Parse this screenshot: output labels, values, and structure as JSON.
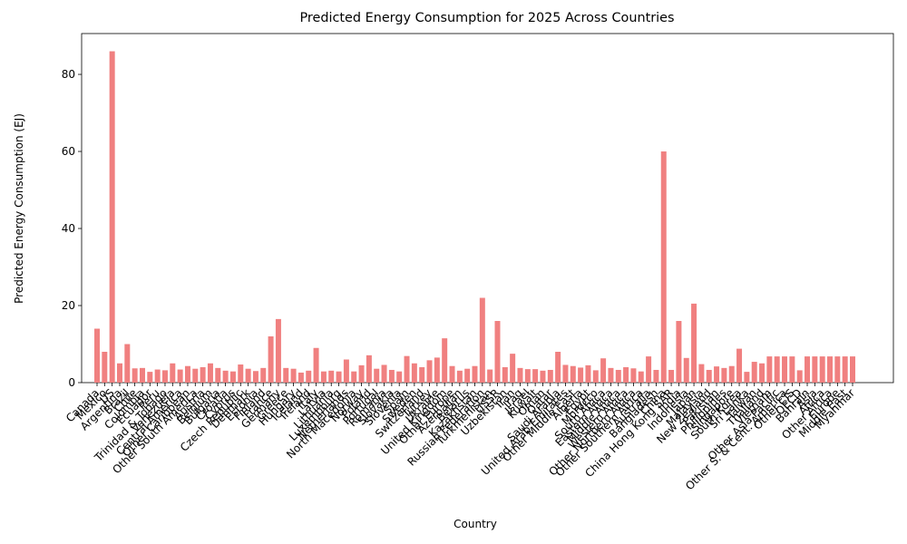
{
  "chart_data": {
    "type": "bar",
    "title": "Predicted Energy Consumption for 2025 Across Countries",
    "x_label": "Country",
    "y_label": "Predicted Energy Consumption (EJ)",
    "color": "#f08080",
    "grid": false,
    "ylim": [
      0,
      90.6
    ],
    "yticks": [
      0,
      20,
      40,
      60,
      80
    ],
    "categories": [
      "Canada",
      "Mexico",
      "US",
      "Argentina",
      "Brazil",
      "Chile",
      "Colombia",
      "Ecuador",
      "Peru",
      "Trinidad & Tobago",
      "Venezuela",
      "Central America",
      "Other Caribbean",
      "Other South America",
      "Austria",
      "Belgium",
      "Bulgaria",
      "Croatia",
      "Cyprus",
      "Czech Republic",
      "Denmark",
      "Estonia",
      "Finland",
      "France",
      "Germany",
      "Greece",
      "Hungary",
      "Iceland",
      "Ireland",
      "Italy",
      "Latvia",
      "Lithuania",
      "Luxembourg",
      "Netherlands",
      "North Macedonia",
      "Norway",
      "Poland",
      "Portugal",
      "Romania",
      "Slovakia",
      "Slovenia",
      "Spain",
      "Sweden",
      "Switzerland",
      "Turkey",
      "Ukraine",
      "United Kingdom",
      "Other Europe",
      "Azerbaijan",
      "Belarus",
      "Kazakhstan",
      "Russian Federation",
      "Turkmenistan",
      "USSR",
      "Uzbekistan",
      "Iran",
      "Iraq",
      "Israel",
      "Kuwait",
      "Oman",
      "Qatar",
      "Saudi Arabia",
      "United Arab Emirates",
      "Other Middle East",
      "Algeria",
      "Egypt",
      "Morocco",
      "South Africa",
      "Eastern Africa",
      "Middle Africa",
      "Western Africa",
      "Other Northern Africa",
      "Other Southern Africa",
      "Australia",
      "Bangladesh",
      "China",
      "China Hong Kong SAR",
      "India",
      "Indonesia",
      "Japan",
      "Malaysia",
      "New Zealand",
      "Pakistan",
      "Philippines",
      "Singapore",
      "South Korea",
      "Sri Lanka",
      "Taiwan",
      "Thailand",
      "Vietnam",
      "Other Asia Pacific",
      "Other S. & Cent. America",
      "Other CIS",
      "OECD",
      "Bahrain",
      "Asia",
      "Africa",
      "Other Africa",
      "Europe",
      "Middle East",
      "Myanmar"
    ],
    "values": [
      14,
      8,
      86,
      5,
      10,
      3.7,
      3.8,
      2.8,
      3.4,
      3.2,
      5,
      3.4,
      4.3,
      3.6,
      4,
      5,
      3.8,
      3.1,
      2.9,
      4.7,
      3.6,
      3,
      3.8,
      12,
      16.5,
      3.8,
      3.6,
      2.6,
      3.1,
      9,
      2.9,
      3.1,
      2.9,
      6,
      2.9,
      4.5,
      7.1,
      3.6,
      4.6,
      3.3,
      2.9,
      6.9,
      5,
      4,
      5.8,
      6.5,
      11.5,
      4.3,
      3.1,
      3.6,
      4.3,
      22,
      3.4,
      16,
      4,
      7.5,
      3.8,
      3.5,
      3.5,
      3.1,
      3.3,
      8,
      4.6,
      4.3,
      3.9,
      4.5,
      3.2,
      6.3,
      3.8,
      3.3,
      4,
      3.7,
      2.9,
      6.8,
      3.3,
      60,
      3.3,
      16,
      6.4,
      20.5,
      4.8,
      3.3,
      4.2,
      3.8,
      4.3,
      8.8,
      2.8,
      5.4,
      5,
      6.8,
      6.8,
      6.8,
      6.8,
      3.2,
      6.8,
      6.8,
      6.8,
      6.8,
      6.8,
      6.8,
      6.8
    ]
  }
}
